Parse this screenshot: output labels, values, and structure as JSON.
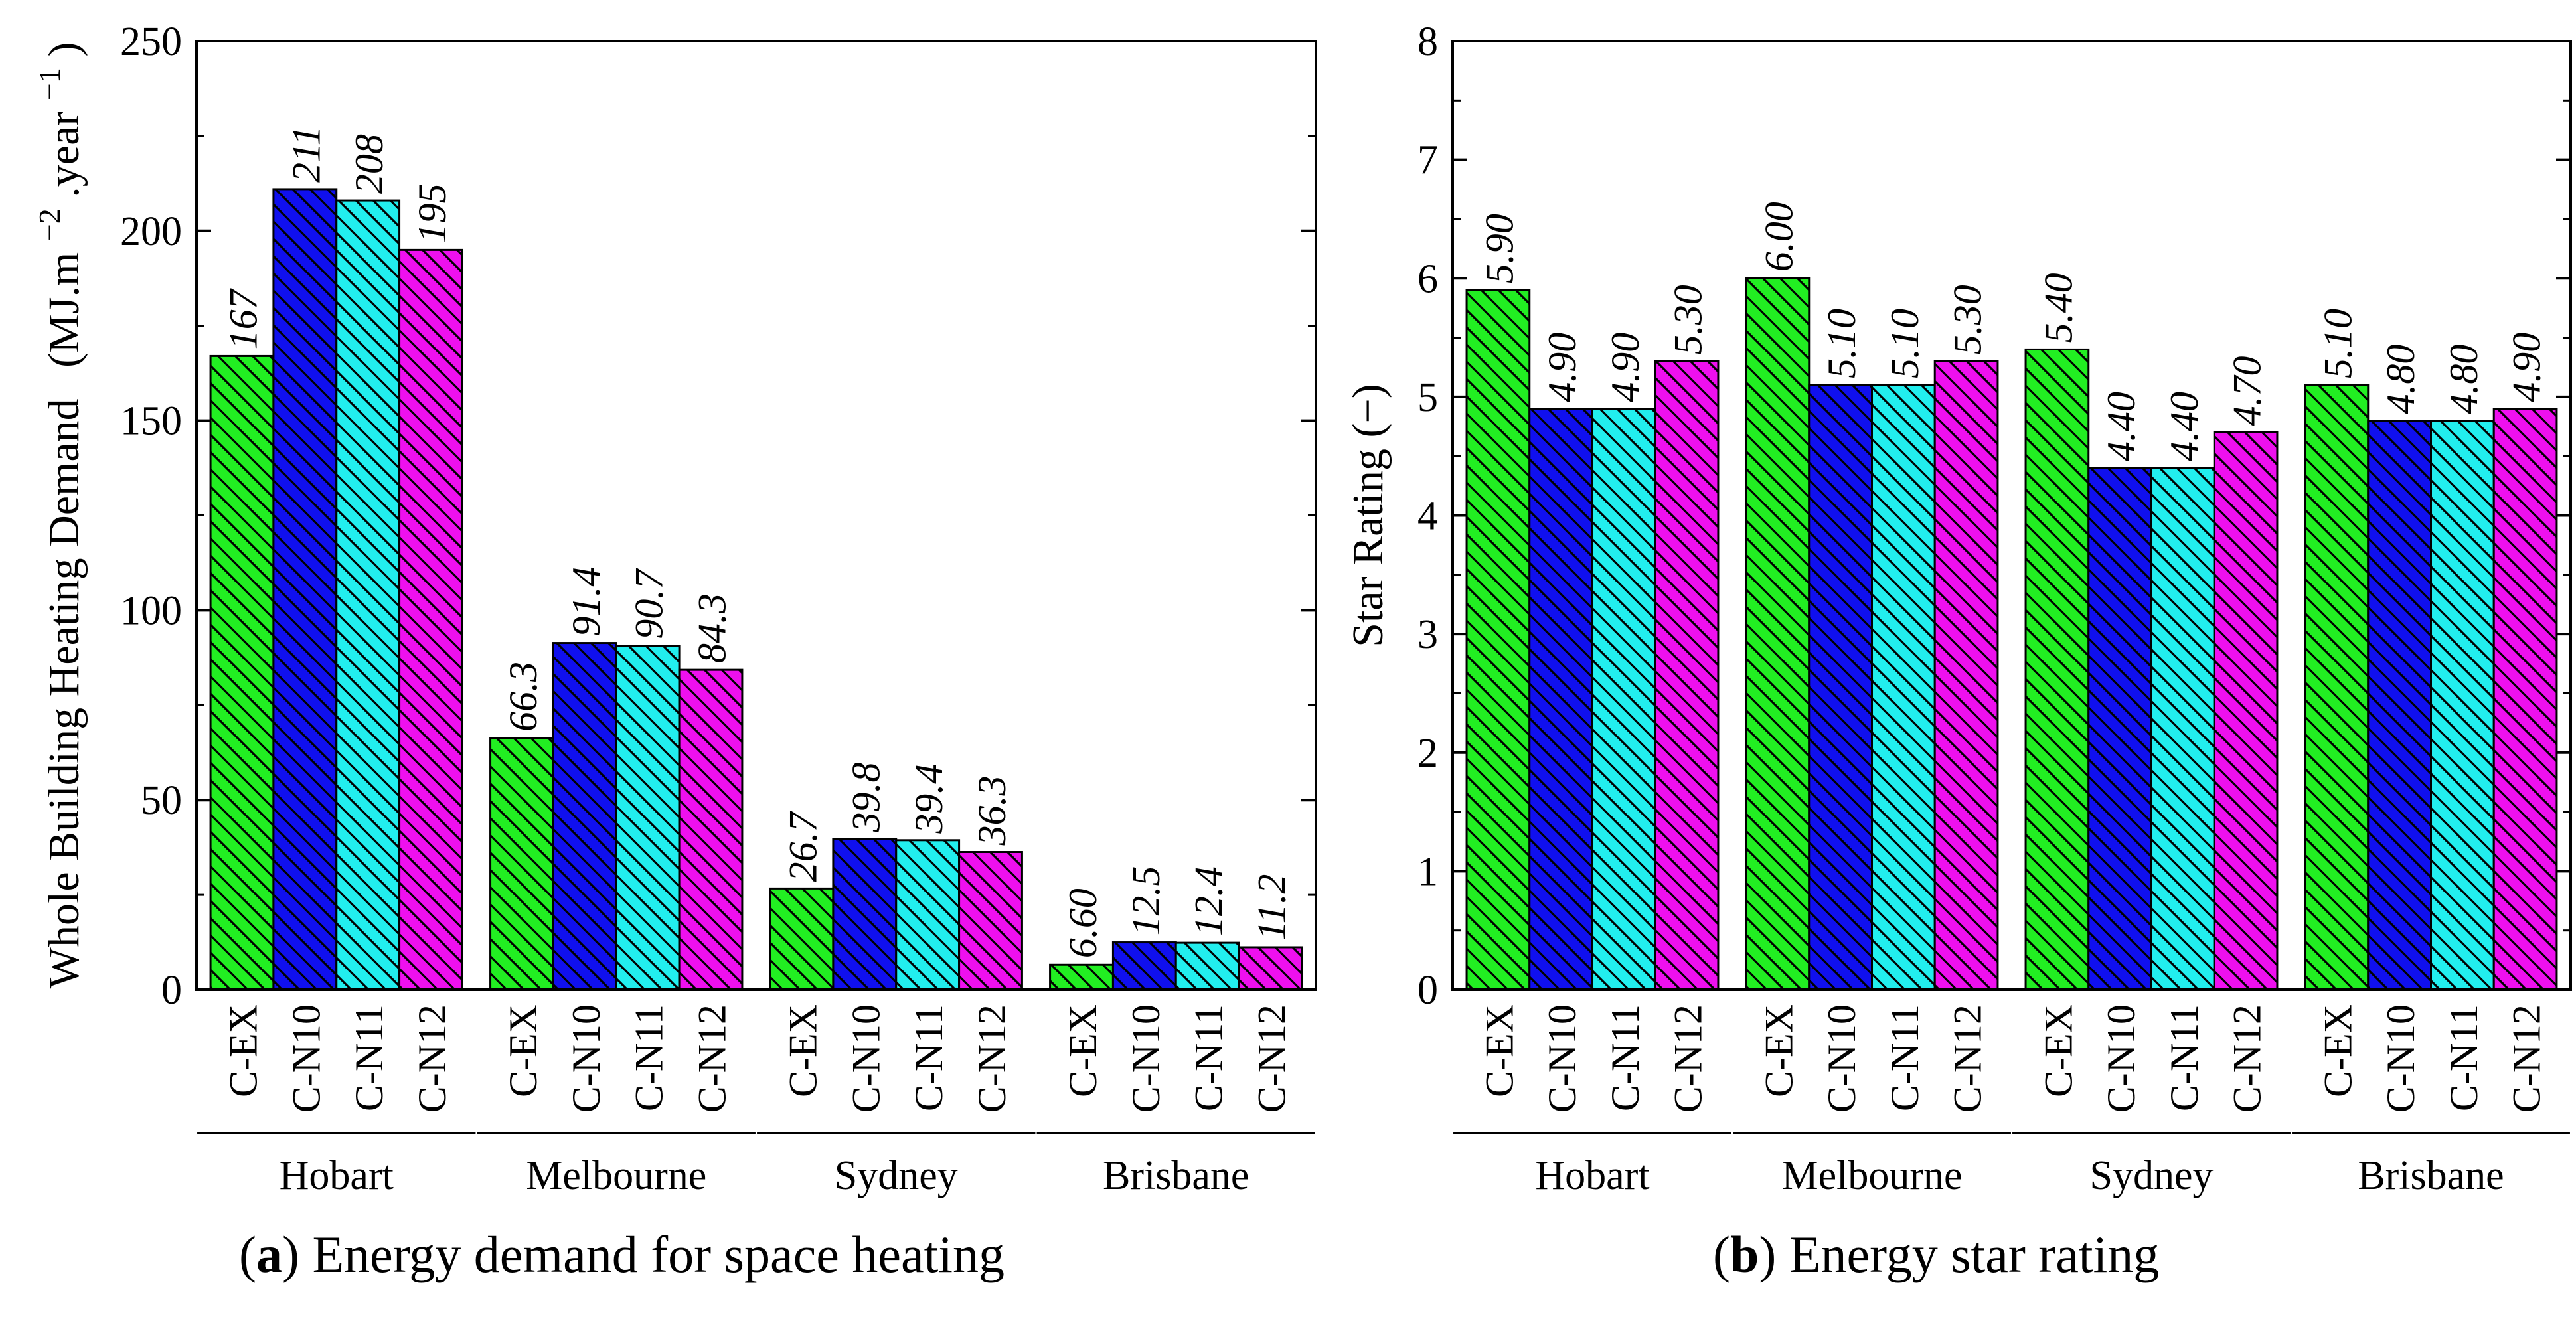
{
  "colors": {
    "series": [
      "#22ee22",
      "#1010ee",
      "#22eeee",
      "#ee10ee"
    ],
    "hatch": "#000000",
    "axis": "#000000",
    "background": "#ffffff"
  },
  "captions": {
    "a": {
      "label": "a",
      "text": " Energy demand for space heating"
    },
    "b": {
      "label": "b",
      "text": " Energy star rating"
    }
  },
  "chart_data": [
    {
      "type": "bar",
      "title": "",
      "categories": [
        "Hobart",
        "Melbourne",
        "Sydney",
        "Brisbane"
      ],
      "series_names": [
        "C-EX",
        "C-N10",
        "C-N11",
        "C-N12"
      ],
      "series": [
        {
          "name": "C-EX",
          "values": [
            167,
            66.3,
            26.7,
            6.6
          ],
          "labels": [
            "167",
            "66.3",
            "26.7",
            "6.60"
          ]
        },
        {
          "name": "C-N10",
          "values": [
            211,
            91.4,
            39.8,
            12.5
          ],
          "labels": [
            "211",
            "91.4",
            "39.8",
            "12.5"
          ]
        },
        {
          "name": "C-N11",
          "values": [
            208,
            90.7,
            39.4,
            12.4
          ],
          "labels": [
            "208",
            "90.7",
            "39.4",
            "12.4"
          ]
        },
        {
          "name": "C-N12",
          "values": [
            195,
            84.3,
            36.3,
            11.2
          ],
          "labels": [
            "195",
            "84.3",
            "36.3",
            "11.2"
          ]
        }
      ],
      "ylabel_main": "Whole Building Heating Demand",
      "ylabel_unit_open": "(MJ.m",
      "ylabel_unit_sup1": "−2",
      "ylabel_unit_mid": ".year",
      "ylabel_unit_sup2": "−1",
      "ylabel_unit_close": ")",
      "ylim": [
        0,
        250
      ],
      "yticks": [
        0,
        50,
        100,
        150,
        200,
        250
      ],
      "ytick_labels": [
        "0",
        "50",
        "100",
        "150",
        "200",
        "250"
      ],
      "minor_step": 25,
      "grid": false
    },
    {
      "type": "bar",
      "title": "",
      "categories": [
        "Hobart",
        "Melbourne",
        "Sydney",
        "Brisbane"
      ],
      "series_names": [
        "C-EX",
        "C-N10",
        "C-N11",
        "C-N12"
      ],
      "series": [
        {
          "name": "C-EX",
          "values": [
            5.9,
            6.0,
            5.4,
            5.1
          ],
          "labels": [
            "5.90",
            "6.00",
            "5.40",
            "5.10"
          ]
        },
        {
          "name": "C-N10",
          "values": [
            4.9,
            5.1,
            4.4,
            4.8
          ],
          "labels": [
            "4.90",
            "5.10",
            "4.40",
            "4.80"
          ]
        },
        {
          "name": "C-N11",
          "values": [
            4.9,
            5.1,
            4.4,
            4.8
          ],
          "labels": [
            "4.90",
            "5.10",
            "4.40",
            "4.80"
          ]
        },
        {
          "name": "C-N12",
          "values": [
            5.3,
            5.3,
            4.7,
            4.9
          ],
          "labels": [
            "5.30",
            "5.30",
            "4.70",
            "4.90"
          ]
        }
      ],
      "ylabel_main": "Star Rating (−)",
      "ylim": [
        0,
        8
      ],
      "yticks": [
        0,
        1,
        2,
        3,
        4,
        5,
        6,
        7,
        8
      ],
      "ytick_labels": [
        "0",
        "1",
        "2",
        "3",
        "4",
        "5",
        "6",
        "7",
        "8"
      ],
      "minor_step": 0.5,
      "grid": false
    }
  ]
}
